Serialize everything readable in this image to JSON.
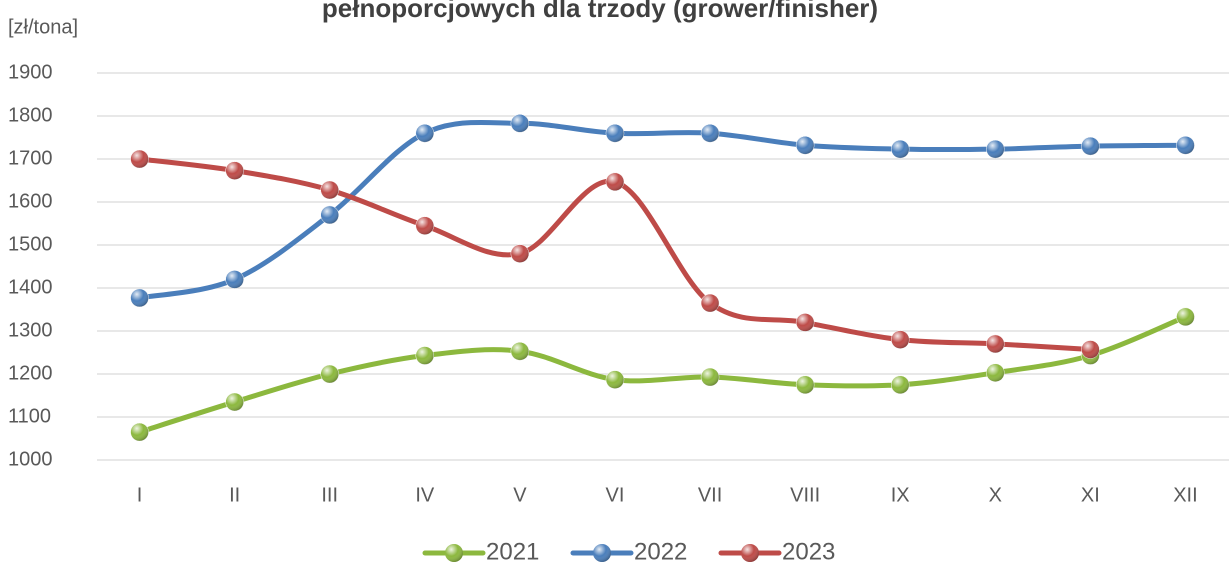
{
  "chart_data": {
    "type": "line",
    "title": "pełnoporcjowych dla trzody (grower/finisher)",
    "y_label": "[zł/tona]",
    "categories": [
      "I",
      "II",
      "III",
      "IV",
      "V",
      "VI",
      "VII",
      "VIII",
      "IX",
      "X",
      "XI",
      "XII"
    ],
    "series": [
      {
        "name": "2021",
        "color": "#8cb83e",
        "values": [
          1065,
          1135,
          1200,
          1243,
          1253,
          1187,
          1193,
          1175,
          1175,
          1203,
          1243,
          1333
        ]
      },
      {
        "name": "2022",
        "color": "#4a7ebb",
        "values": [
          1377,
          1420,
          1570,
          1760,
          1783,
          1760,
          1760,
          1732,
          1723,
          1723,
          1730,
          1732
        ]
      },
      {
        "name": "2023",
        "color": "#be4b48",
        "values": [
          1700,
          1673,
          1628,
          1545,
          1480,
          1647,
          1365,
          1320,
          1280,
          1270,
          1257,
          null
        ]
      }
    ],
    "ylim": [
      1000,
      1900
    ],
    "yticks": [
      1000,
      1100,
      1200,
      1300,
      1400,
      1500,
      1600,
      1700,
      1800,
      1900
    ],
    "grid": true,
    "legend": "bottom"
  }
}
